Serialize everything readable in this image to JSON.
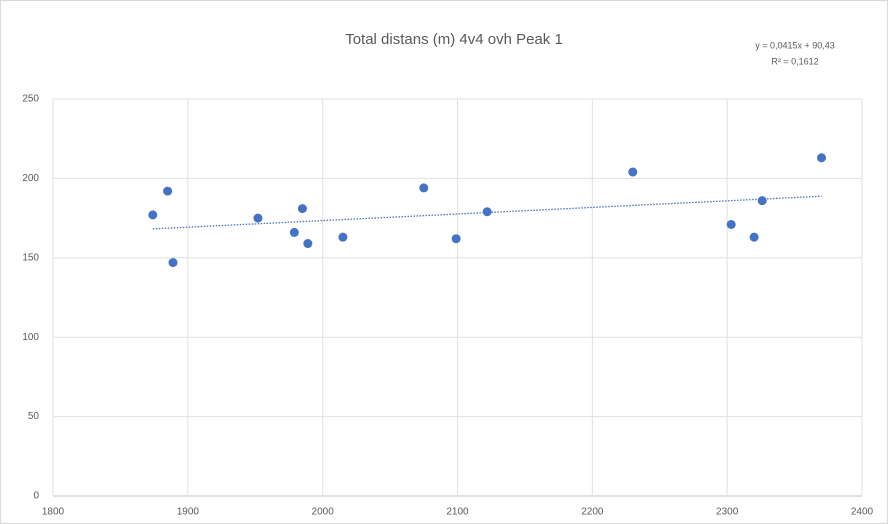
{
  "chart_data": {
    "type": "scatter",
    "title": "Total distans (m) 4v4 ovh Peak 1",
    "series": [
      {
        "color": "#4472c4",
        "x": [
          1874,
          1885,
          1889,
          1952,
          1979,
          1985,
          1989,
          2015,
          2075,
          2099,
          2122,
          2230,
          2303,
          2320,
          2326,
          2370
        ],
        "values": [
          177,
          192,
          147,
          175,
          166,
          181,
          159,
          163,
          194,
          162,
          179,
          204,
          171,
          163,
          186,
          213
        ]
      }
    ],
    "trendline": {
      "slope": 0.0415,
      "intercept": 90.43,
      "equation": "y = 0,0415x + 90,43",
      "r2": 0.1612,
      "r2_label": "R² = 0,1612"
    },
    "xlim": [
      1800,
      2400
    ],
    "xticks": [
      1800,
      1900,
      2000,
      2100,
      2200,
      2300,
      2400
    ],
    "ylim": [
      0,
      250
    ],
    "yticks": [
      0,
      50,
      100,
      150,
      200,
      250
    ],
    "grid": true
  }
}
